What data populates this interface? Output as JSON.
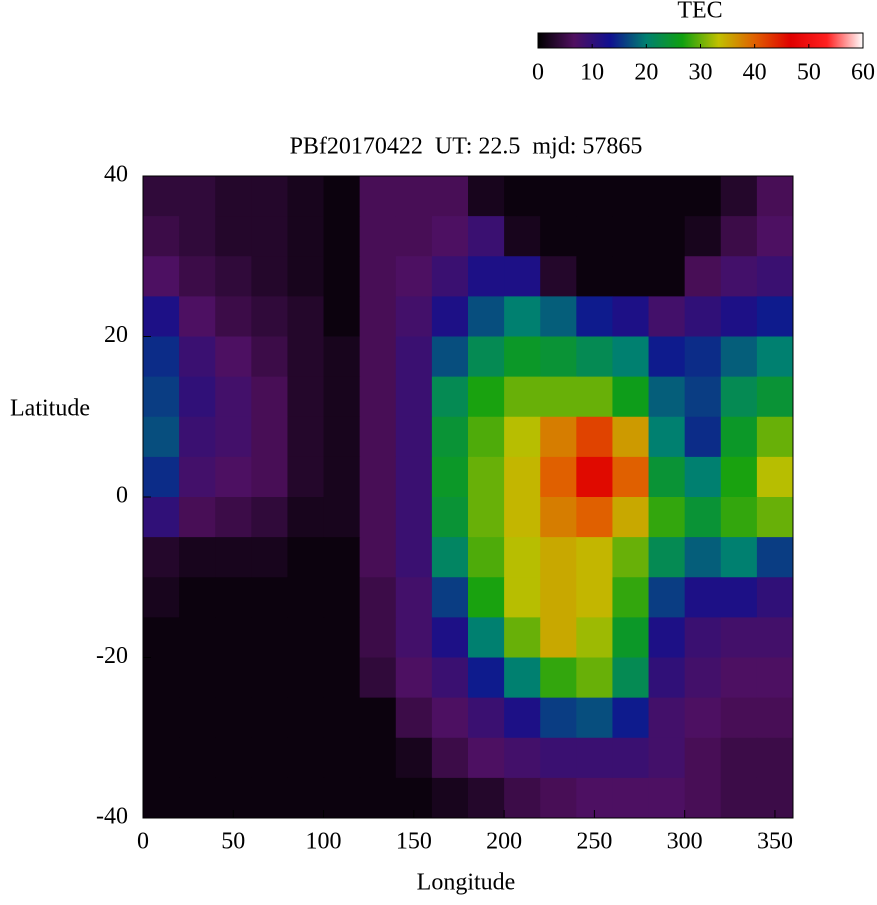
{
  "chart_data": {
    "type": "heatmap",
    "title": "PBf20170422  UT: 22.5  mjd: 57865",
    "xlabel": "Longitude",
    "ylabel": "Latitude",
    "x": [
      10,
      30,
      50,
      70,
      90,
      110,
      130,
      150,
      170,
      190,
      210,
      230,
      250,
      270,
      290,
      310,
      330,
      350
    ],
    "y": [
      37.5,
      32.5,
      27.5,
      22.5,
      17.5,
      12.5,
      7.5,
      2.5,
      -2.5,
      -7.5,
      -12.5,
      -17.5,
      -22.5,
      -27.5,
      -32.5,
      -37.5
    ],
    "z": [
      [
        4,
        4,
        3,
        3,
        2,
        1,
        6,
        6,
        6,
        2,
        1,
        1,
        1,
        1,
        1,
        1,
        3,
        6
      ],
      [
        5,
        4,
        3,
        3,
        2,
        1,
        6,
        6,
        7,
        9,
        2,
        1,
        1,
        1,
        1,
        2,
        5,
        7
      ],
      [
        7,
        5,
        4,
        3,
        2,
        1,
        6,
        7,
        9,
        12,
        12,
        3,
        1,
        1,
        1,
        6,
        8,
        9
      ],
      [
        12,
        7,
        5,
        4,
        3,
        1,
        6,
        8,
        12,
        17,
        20,
        18,
        14,
        12,
        8,
        10,
        12,
        14
      ],
      [
        15,
        9,
        7,
        5,
        3,
        2,
        6,
        9,
        17,
        22,
        25,
        24,
        22,
        20,
        14,
        15,
        18,
        20
      ],
      [
        16,
        10,
        8,
        6,
        3,
        2,
        6,
        9,
        22,
        27,
        30,
        30,
        30,
        26,
        18,
        16,
        22,
        24
      ],
      [
        17,
        9,
        8,
        6,
        3,
        2,
        6,
        9,
        24,
        29,
        33,
        38,
        42,
        36,
        20,
        15,
        25,
        30
      ],
      [
        15,
        8,
        7,
        6,
        3,
        2,
        6,
        9,
        25,
        30,
        34,
        40,
        46,
        40,
        24,
        20,
        27,
        33
      ],
      [
        10,
        6,
        5,
        4,
        2,
        2,
        6,
        9,
        24,
        30,
        34,
        38,
        40,
        35,
        28,
        24,
        28,
        30
      ],
      [
        3,
        2,
        2,
        2,
        1,
        1,
        6,
        9,
        21,
        29,
        33,
        35,
        34,
        30,
        22,
        18,
        20,
        16
      ],
      [
        2,
        1,
        1,
        1,
        1,
        1,
        5,
        8,
        16,
        27,
        33,
        35,
        34,
        28,
        16,
        12,
        12,
        10
      ],
      [
        1,
        1,
        1,
        1,
        1,
        1,
        5,
        8,
        12,
        20,
        30,
        35,
        32,
        25,
        12,
        9,
        8,
        8
      ],
      [
        1,
        1,
        1,
        1,
        1,
        1,
        4,
        7,
        9,
        14,
        20,
        28,
        30,
        22,
        10,
        8,
        7,
        7
      ],
      [
        1,
        1,
        1,
        1,
        1,
        1,
        1,
        5,
        7,
        9,
        12,
        16,
        17,
        14,
        8,
        7,
        6,
        6
      ],
      [
        1,
        1,
        1,
        1,
        1,
        1,
        1,
        2,
        5,
        7,
        8,
        9,
        9,
        9,
        8,
        6,
        5,
        5
      ],
      [
        1,
        1,
        1,
        1,
        1,
        1,
        1,
        1,
        2,
        3,
        5,
        6,
        7,
        7,
        7,
        6,
        5,
        5
      ]
    ],
    "xlim": [
      0,
      360
    ],
    "ylim": [
      -40,
      40
    ],
    "xticks": [
      0,
      50,
      100,
      150,
      200,
      250,
      300,
      350
    ],
    "yticks": [
      -40,
      -20,
      0,
      20,
      40
    ],
    "colorbar": {
      "label": "TEC",
      "lim": [
        0,
        60
      ],
      "ticks": [
        0,
        10,
        20,
        30,
        40,
        50,
        60
      ]
    },
    "colormap": [
      "#000000",
      "#501060",
      "#101090",
      "#008070",
      "#10a010",
      "#c0c000",
      "#e06000",
      "#e00000",
      "#ff2020",
      "#ffffff"
    ]
  }
}
